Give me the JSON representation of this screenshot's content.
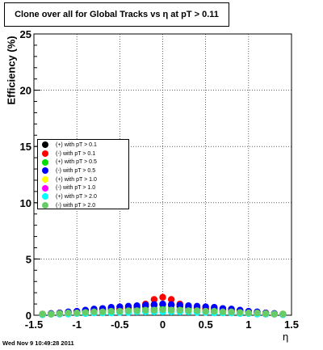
{
  "title": "Clone  over all for Global Tracks vs η at pT > 0.11",
  "timestamp": "Wed Nov  9 10:49:28 2011",
  "chart_data": {
    "type": "scatter",
    "xlabel": "η",
    "ylabel": "Efficiency (%)",
    "xlim": [
      -1.5,
      1.5
    ],
    "ylim": [
      0,
      25
    ],
    "xticks": [
      "-1.5",
      "-1",
      "-0.5",
      "0",
      "0.5",
      "1",
      "1.5"
    ],
    "yticks": [
      "0",
      "5",
      "10",
      "15",
      "20",
      "25"
    ],
    "grid": true,
    "legend_position": "left",
    "x": [
      -1.4,
      -1.3,
      -1.2,
      -1.1,
      -1.0,
      -0.9,
      -0.8,
      -0.7,
      -0.6,
      -0.5,
      -0.4,
      -0.3,
      -0.2,
      -0.1,
      0.0,
      0.1,
      0.2,
      0.3,
      0.4,
      0.5,
      0.6,
      0.7,
      0.8,
      0.9,
      1.0,
      1.1,
      1.2,
      1.3,
      1.4
    ],
    "series": [
      {
        "name": "(+) with pT > 0.1",
        "color": "#000000",
        "values": [
          0.1,
          0.15,
          0.2,
          0.25,
          0.3,
          0.35,
          0.4,
          0.45,
          0.5,
          0.55,
          0.65,
          0.7,
          0.8,
          0.9,
          0.95,
          0.9,
          0.8,
          0.7,
          0.65,
          0.55,
          0.5,
          0.45,
          0.4,
          0.35,
          0.3,
          0.25,
          0.2,
          0.15,
          0.1
        ]
      },
      {
        "name": "(-) with pT > 0.1",
        "color": "#ff0000",
        "values": [
          0.1,
          0.15,
          0.2,
          0.25,
          0.3,
          0.35,
          0.4,
          0.45,
          0.5,
          0.55,
          0.65,
          0.7,
          1.0,
          1.4,
          1.6,
          1.4,
          1.0,
          0.7,
          0.65,
          0.55,
          0.5,
          0.45,
          0.4,
          0.35,
          0.3,
          0.25,
          0.2,
          0.15,
          0.1
        ]
      },
      {
        "name": "(+) with pT > 0.5",
        "color": "#00dd00",
        "values": [
          0.1,
          0.1,
          0.15,
          0.2,
          0.25,
          0.3,
          0.3,
          0.35,
          0.4,
          0.4,
          0.45,
          0.5,
          0.5,
          0.55,
          0.6,
          0.55,
          0.5,
          0.5,
          0.45,
          0.4,
          0.4,
          0.35,
          0.3,
          0.3,
          0.25,
          0.2,
          0.15,
          0.1,
          0.1
        ]
      },
      {
        "name": "(-) with pT > 0.5",
        "color": "#0000ff",
        "values": [
          0.1,
          0.15,
          0.2,
          0.3,
          0.35,
          0.45,
          0.55,
          0.6,
          0.7,
          0.75,
          0.8,
          0.85,
          0.9,
          0.95,
          1.0,
          0.95,
          0.9,
          0.85,
          0.8,
          0.75,
          0.7,
          0.6,
          0.55,
          0.45,
          0.35,
          0.3,
          0.2,
          0.15,
          0.1
        ]
      },
      {
        "name": "(+) with pT > 1.0",
        "color": "#ffff00",
        "values": [
          0.1,
          0.1,
          0.15,
          0.15,
          0.2,
          0.2,
          0.25,
          0.25,
          0.3,
          0.3,
          0.35,
          0.35,
          0.4,
          0.4,
          0.4,
          0.4,
          0.4,
          0.35,
          0.35,
          0.3,
          0.3,
          0.25,
          0.25,
          0.2,
          0.2,
          0.15,
          0.15,
          0.1,
          0.1
        ]
      },
      {
        "name": "(-) with pT > 1.0",
        "color": "#ff00ff",
        "values": [
          0.05,
          0.1,
          0.1,
          0.15,
          0.2,
          0.2,
          0.25,
          0.3,
          0.3,
          0.35,
          0.35,
          0.4,
          0.4,
          0.45,
          0.45,
          0.45,
          0.4,
          0.4,
          0.35,
          0.35,
          0.3,
          0.3,
          0.25,
          0.2,
          0.2,
          0.15,
          0.1,
          0.1,
          0.05
        ]
      },
      {
        "name": "(+) with pT > 2.0",
        "color": "#00ffff",
        "values": [
          0.05,
          0.1,
          0.1,
          0.1,
          0.15,
          0.15,
          0.2,
          0.2,
          0.2,
          0.25,
          0.25,
          0.3,
          0.3,
          0.3,
          0.3,
          0.3,
          0.3,
          0.3,
          0.25,
          0.25,
          0.2,
          0.2,
          0.2,
          0.15,
          0.15,
          0.1,
          0.1,
          0.1,
          0.05
        ]
      },
      {
        "name": "(-) with pT > 2.0",
        "color": "#66cc66",
        "values": [
          0.1,
          0.1,
          0.15,
          0.2,
          0.2,
          0.25,
          0.3,
          0.3,
          0.35,
          0.35,
          0.4,
          0.4,
          0.45,
          0.45,
          0.5,
          0.45,
          0.45,
          0.4,
          0.4,
          0.35,
          0.35,
          0.3,
          0.3,
          0.25,
          0.2,
          0.2,
          0.15,
          0.1,
          0.1
        ]
      }
    ]
  }
}
